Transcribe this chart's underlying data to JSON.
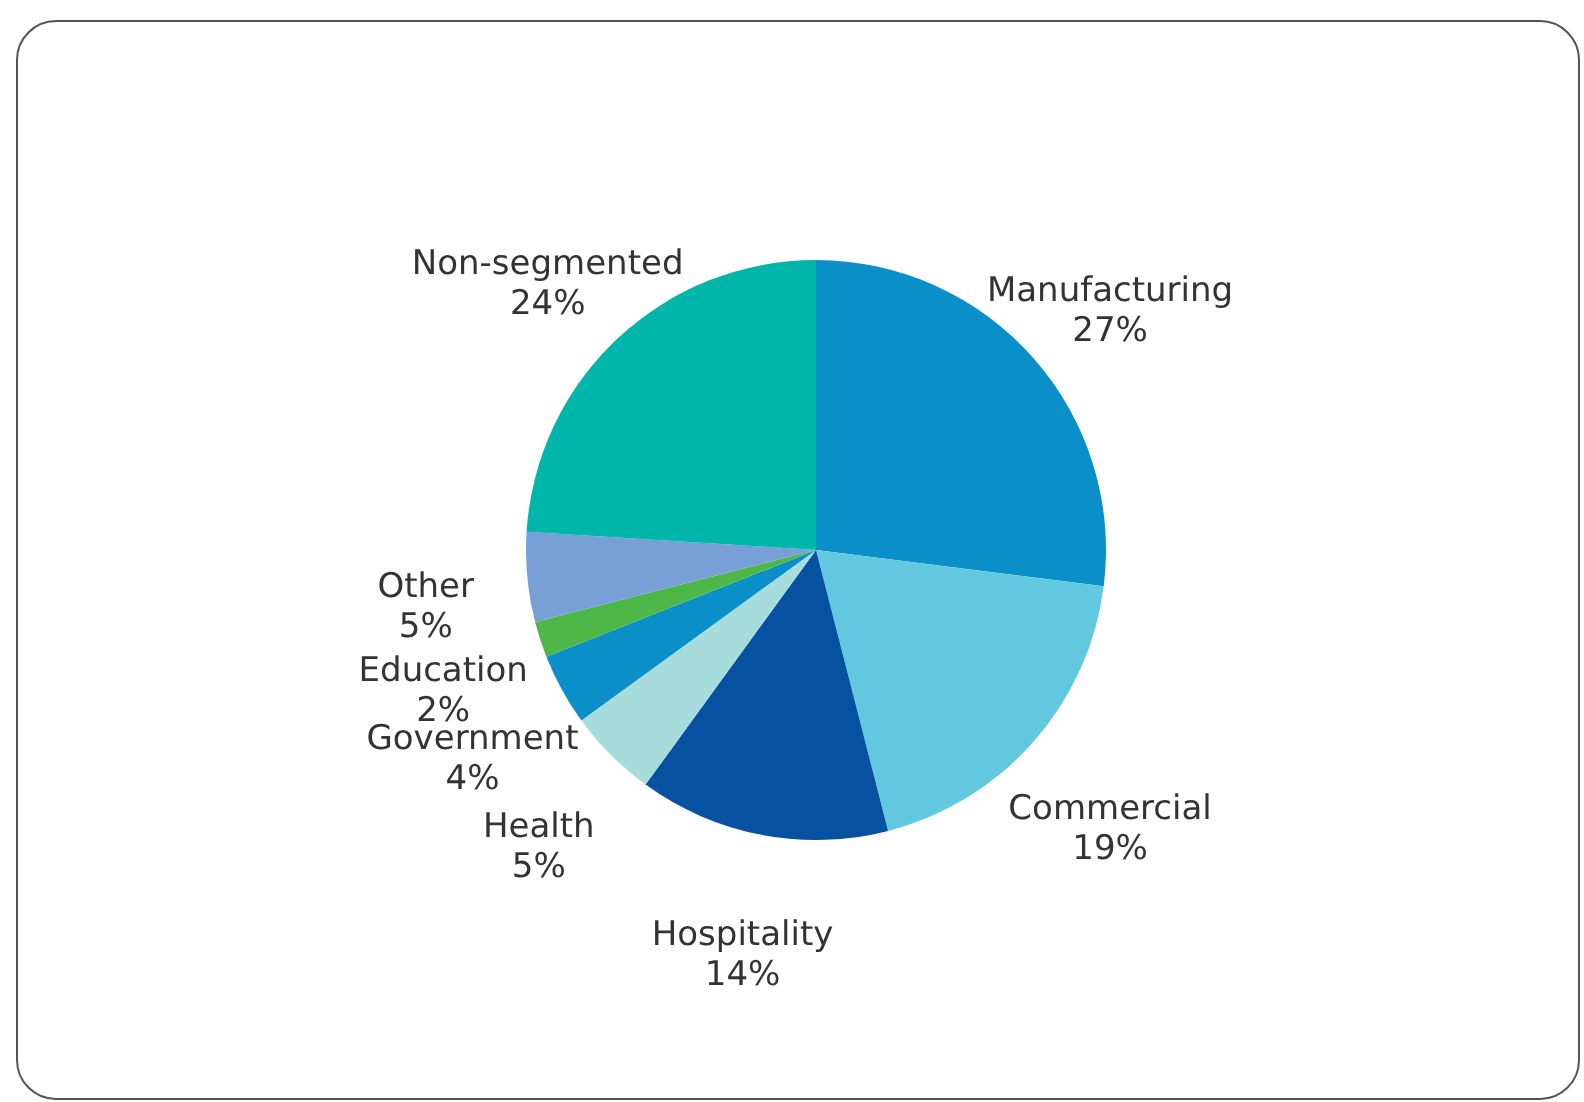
{
  "chart_data": {
    "type": "pie",
    "categories": [
      "Manufacturing",
      "Commercial",
      "Hospitality",
      "Health",
      "Government",
      "Education",
      "Other",
      "Non-segmented"
    ],
    "values": [
      27,
      19,
      14,
      5,
      4,
      2,
      5,
      24
    ],
    "value_labels": [
      "27%",
      "19%",
      "14%",
      "5%",
      "4%",
      "2%",
      "5%",
      "24%"
    ],
    "colors": [
      "#0b8fc9",
      "#62c8e0",
      "#0652a1",
      "#a6dcdb",
      "#0b8fc9",
      "#4db848",
      "#789fd6",
      "#00b5a9"
    ]
  }
}
